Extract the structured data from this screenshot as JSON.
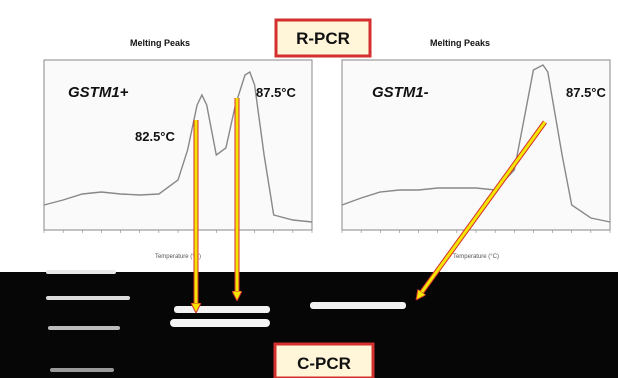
{
  "figure": {
    "rpcr_label": "R-PCR",
    "cpcr_label": "C-PCR",
    "colors": {
      "box_border": "#d32f2f",
      "box_fill": "#fff6da",
      "arrow": "#f3e500",
      "arrow_outline": "#d32f2f"
    }
  },
  "chart_data": [
    {
      "type": "line",
      "title": "Melting Peaks",
      "xlabel": "Temperature (°C)",
      "sample_label": "GSTM1+",
      "series": [
        {
          "x": [
            66,
            68,
            70,
            72,
            74,
            76,
            78,
            80,
            81,
            82,
            82.5,
            83,
            84,
            85,
            86,
            87,
            87.5,
            88,
            89,
            90,
            92,
            94
          ],
          "y": [
            0.55,
            0.6,
            0.66,
            0.68,
            0.66,
            0.65,
            0.66,
            0.8,
            1.1,
            1.55,
            1.65,
            1.55,
            1.05,
            1.12,
            1.55,
            1.85,
            1.88,
            1.75,
            1.05,
            0.45,
            0.4,
            0.38
          ]
        }
      ],
      "peaks": [
        {
          "temp": 82.5,
          "label": "82.5°C"
        },
        {
          "temp": 87.5,
          "label": "87.5°C"
        }
      ],
      "xlim": [
        66,
        94
      ],
      "ylim": [
        0.3,
        2.0
      ]
    },
    {
      "type": "line",
      "title": "Melting Peaks",
      "xlabel": "Temperature (°C)",
      "sample_label": "GSTM1-",
      "series": [
        {
          "x": [
            66,
            68,
            70,
            72,
            74,
            76,
            78,
            80,
            82,
            84,
            85,
            86,
            87,
            87.5,
            88,
            89,
            90,
            92,
            94
          ],
          "y": [
            0.55,
            0.62,
            0.68,
            0.7,
            0.7,
            0.72,
            0.72,
            0.72,
            0.7,
            0.9,
            1.4,
            1.9,
            1.95,
            1.88,
            1.6,
            1.05,
            0.55,
            0.42,
            0.38
          ]
        }
      ],
      "peaks": [
        {
          "temp": 87.5,
          "label": "87.5°C"
        }
      ],
      "xlim": [
        66,
        94
      ],
      "ylim": [
        0.3,
        2.0
      ]
    }
  ]
}
